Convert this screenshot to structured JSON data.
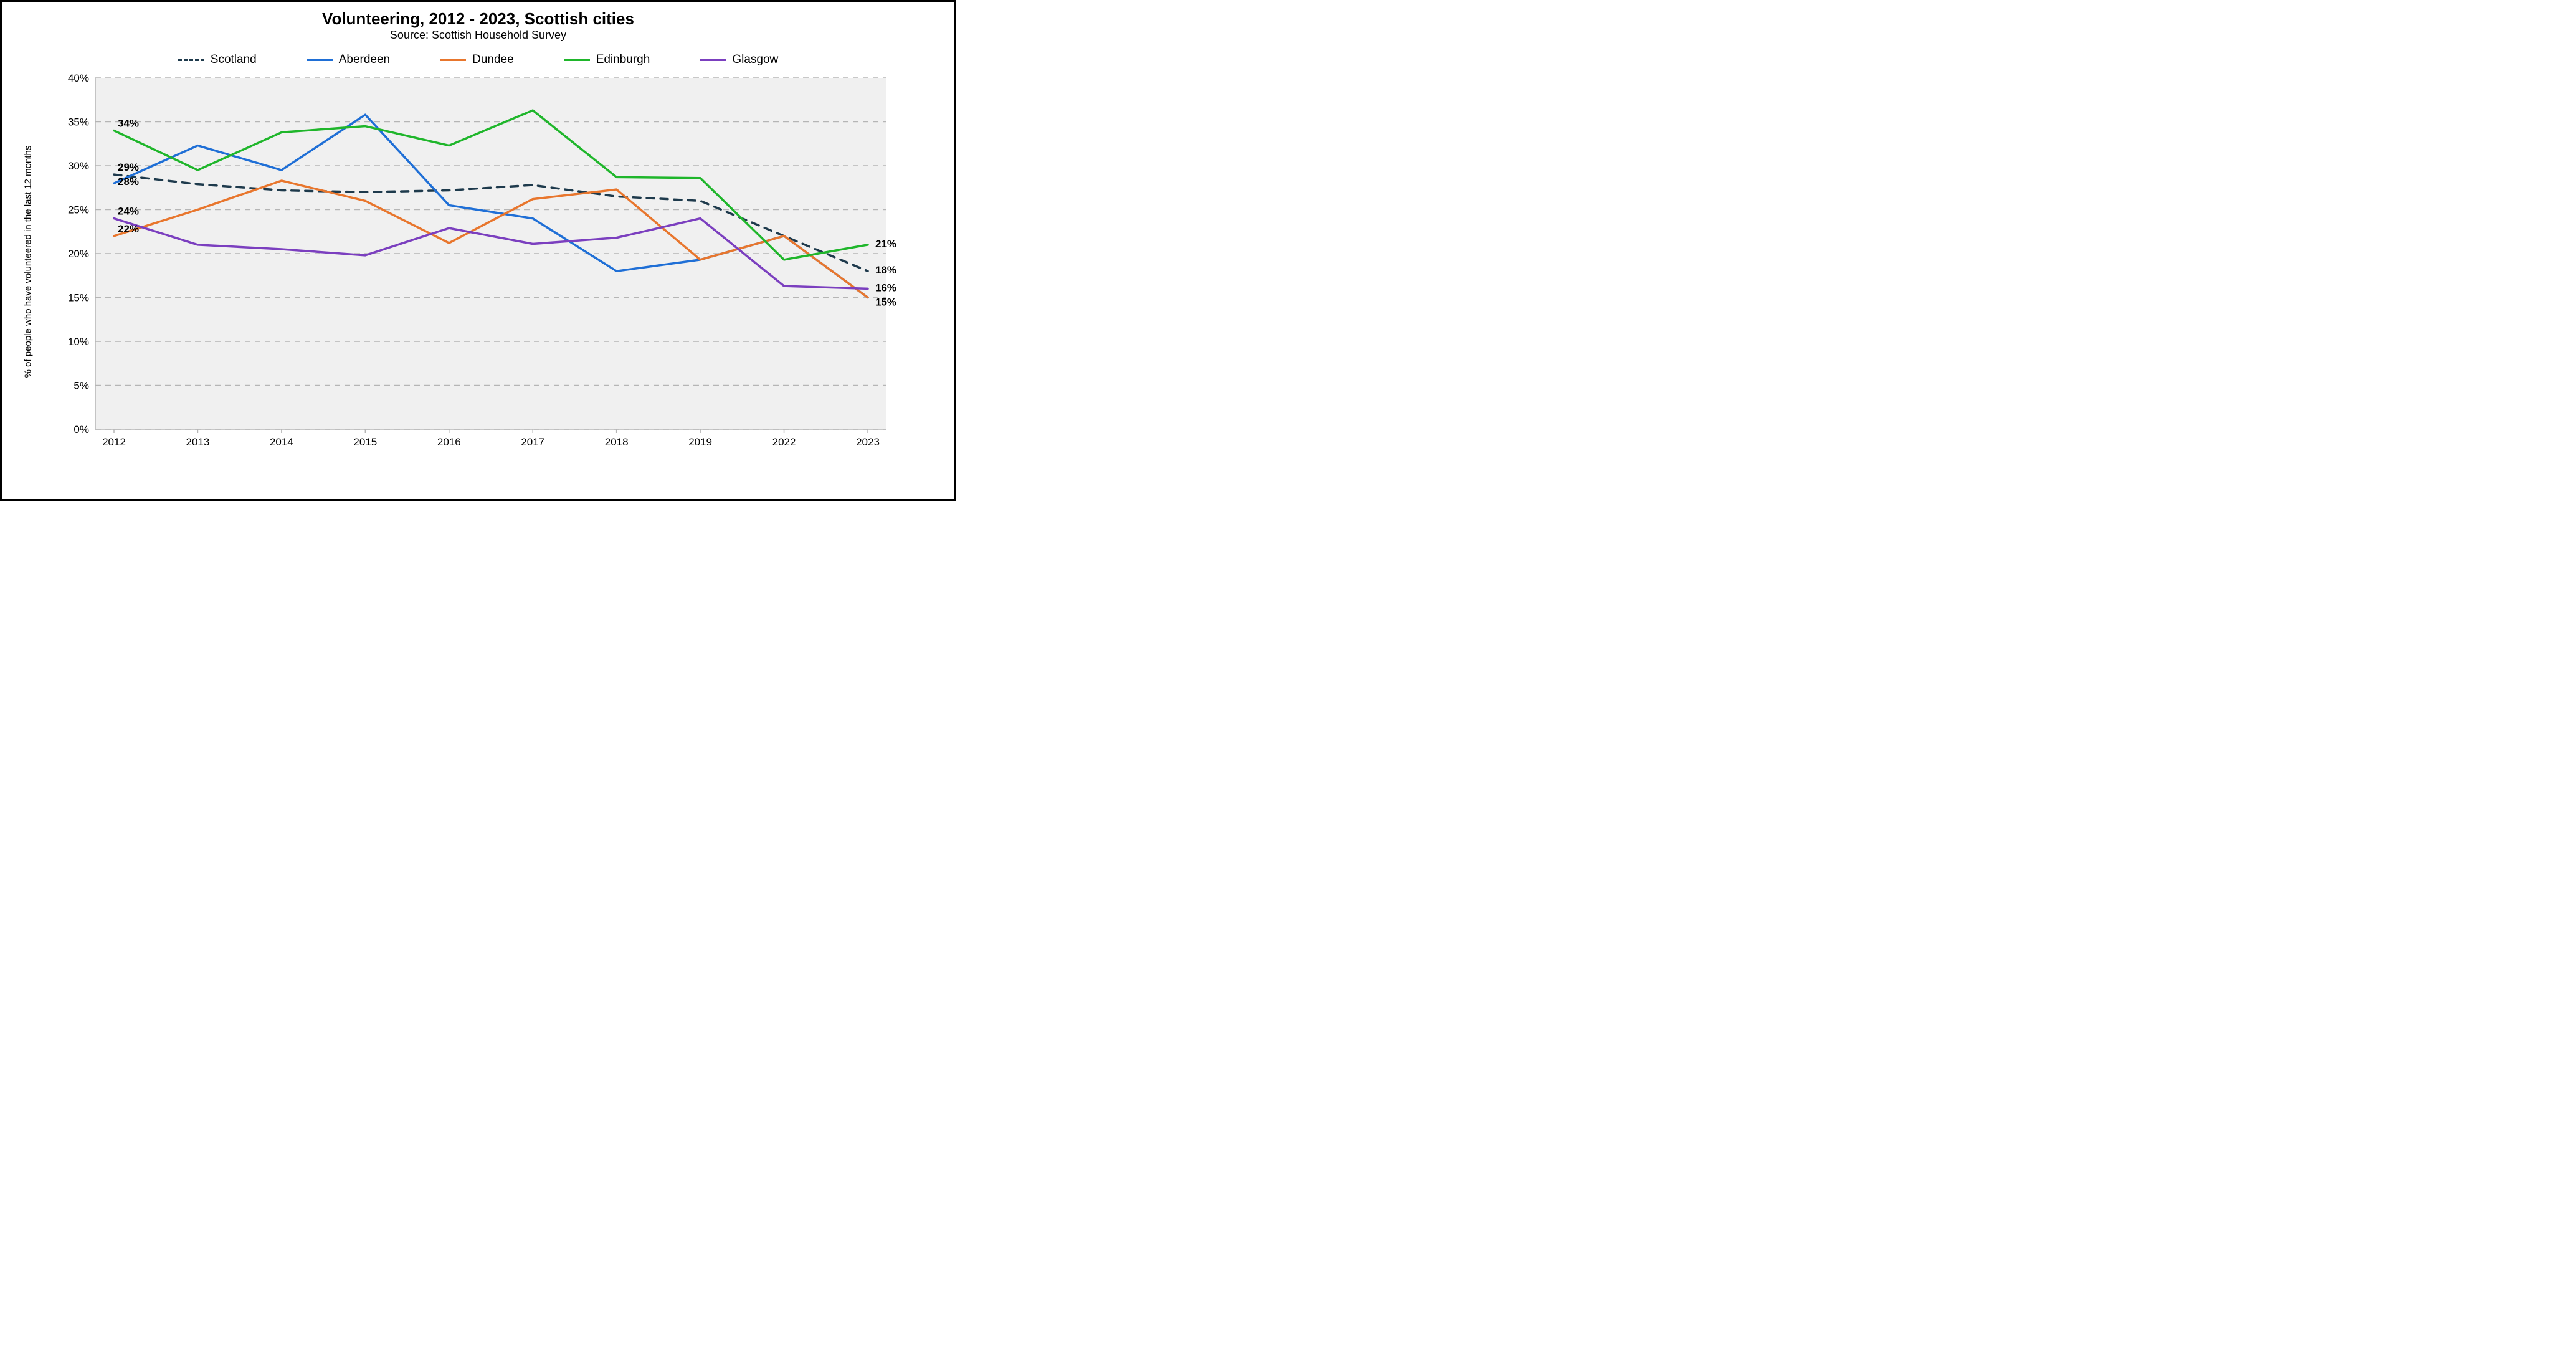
{
  "chart": {
    "type": "line",
    "title": "Volunteering, 2012 - 2023, Scottish cities",
    "title_fontsize": 26,
    "subtitle": "Source: Scottish Household Survey",
    "subtitle_fontsize": 18,
    "yaxis_title": "% of people who have volunteered in the last 12 months",
    "yaxis_title_fontsize": 15,
    "background_color": "#ffffff",
    "plot_background_color": "#f0f0f0",
    "grid_color": "#b5b5b5",
    "grid_dash": "9,7",
    "axis_color": "#b5b5b5",
    "border_color": "#000000",
    "line_width": 3.5,
    "categories": [
      "2012",
      "2013",
      "2014",
      "2015",
      "2016",
      "2017",
      "2018",
      "2019",
      "2022",
      "2023"
    ],
    "ylim": [
      0,
      40
    ],
    "ytick_step": 5,
    "ytick_suffix": "%",
    "tick_fontsize": 17,
    "legend_fontsize": 19,
    "data_label_fontsize": 17,
    "series": [
      {
        "name": "Scotland",
        "color": "#1e3a4c",
        "dash": "12,10",
        "values": [
          29.0,
          27.9,
          27.2,
          27.0,
          27.2,
          27.8,
          26.5,
          26.0,
          22.0,
          18.0
        ],
        "start_label": "29%",
        "end_label": "18%"
      },
      {
        "name": "Aberdeen",
        "color": "#1f6fd6",
        "dash": null,
        "values": [
          28.0,
          32.3,
          29.5,
          35.8,
          25.5,
          24.0,
          18.0,
          19.3,
          22.0,
          15.0
        ],
        "start_label": "28%",
        "end_label": "15%"
      },
      {
        "name": "Dundee",
        "color": "#e8762d",
        "dash": null,
        "values": [
          22.0,
          25.0,
          28.3,
          26.0,
          21.2,
          26.2,
          27.3,
          19.3,
          22.0,
          15.0
        ],
        "start_label": "22%",
        "end_label": "15%"
      },
      {
        "name": "Edinburgh",
        "color": "#1fb62b",
        "dash": null,
        "values": [
          34.0,
          29.5,
          33.8,
          34.5,
          32.3,
          36.3,
          28.7,
          28.6,
          19.3,
          21.0
        ],
        "start_label": "34%",
        "end_label": "21%"
      },
      {
        "name": "Glasgow",
        "color": "#7b3fbf",
        "dash": null,
        "values": [
          24.0,
          21.0,
          20.5,
          19.8,
          22.9,
          21.1,
          21.8,
          24.0,
          16.3,
          16.0
        ],
        "start_label": "24%",
        "end_label": "16%"
      }
    ],
    "start_label_order": [
      "Edinburgh",
      "Scotland",
      "Aberdeen",
      "Glasgow",
      "Dundee"
    ],
    "end_label_order": [
      "Edinburgh",
      "Scotland",
      "Glasgow",
      "Aberdeen"
    ]
  }
}
